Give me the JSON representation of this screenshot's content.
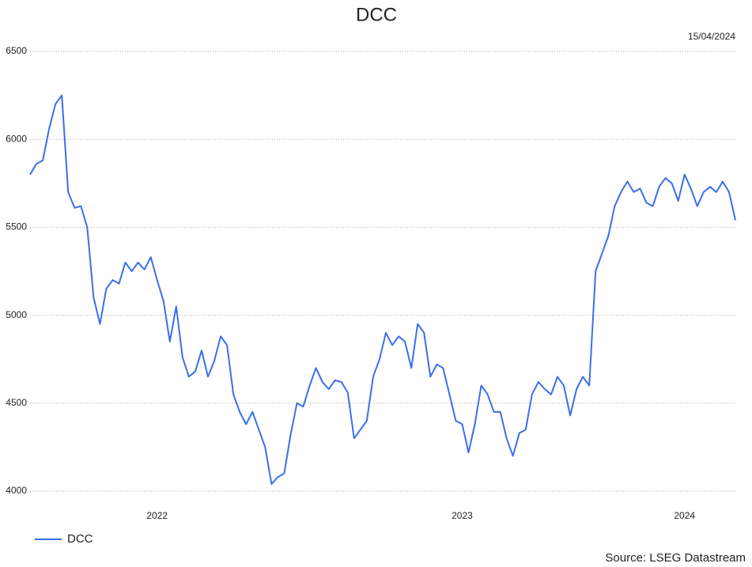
{
  "chart_data": {
    "type": "line",
    "title": "DCC",
    "date": "15/04/2024",
    "source": "Source: LSEG Datastream",
    "categories": [
      null,
      null,
      null,
      null,
      null,
      null,
      null,
      null,
      null,
      null,
      null,
      null,
      null,
      null,
      null,
      null,
      null,
      null,
      null,
      null,
      "2022",
      null,
      null,
      null,
      null,
      null,
      null,
      null,
      null,
      null,
      null,
      null,
      null,
      null,
      null,
      null,
      null,
      null,
      null,
      null,
      null,
      null,
      null,
      null,
      null,
      null,
      null,
      null,
      null,
      null,
      null,
      null,
      null,
      null,
      null,
      null,
      null,
      null,
      null,
      null,
      null,
      null,
      null,
      null,
      null,
      null,
      null,
      null,
      "2023",
      null,
      null,
      null,
      null,
      null,
      null,
      null,
      null,
      null,
      null,
      null,
      null,
      null,
      null,
      null,
      null,
      null,
      null,
      null,
      null,
      null,
      null,
      null,
      null,
      null,
      null,
      null,
      null,
      null,
      null,
      null,
      null,
      null,
      null,
      "2024",
      null,
      null,
      null,
      null,
      null,
      null,
      null,
      null
    ],
    "series": [
      {
        "name": "DCC",
        "color": "#3b6fe8",
        "values": [
          5800,
          5860,
          5880,
          6060,
          6200,
          6250,
          5700,
          5610,
          5620,
          5500,
          5100,
          4950,
          5150,
          5200,
          5180,
          5300,
          5250,
          5300,
          5260,
          5330,
          5200,
          5080,
          4850,
          5050,
          4760,
          4650,
          4680,
          4800,
          4650,
          4740,
          4880,
          4830,
          4550,
          4450,
          4380,
          4450,
          4350,
          4250,
          4040,
          4080,
          4100,
          4320,
          4500,
          4480,
          4600,
          4700,
          4620,
          4580,
          4630,
          4620,
          4560,
          4300,
          4350,
          4400,
          4650,
          4750,
          4900,
          4830,
          4880,
          4850,
          4700,
          4950,
          4900,
          4650,
          4720,
          4700,
          4550,
          4400,
          4380,
          4220,
          4380,
          4600,
          4550,
          4450,
          4450,
          4300,
          4200,
          4330,
          4350,
          4550,
          4620,
          4580,
          4550,
          4650,
          4600,
          4430,
          4580,
          4650,
          4600,
          5250,
          5350,
          5450,
          5620,
          5700,
          5760,
          5700,
          5720,
          5640,
          5620,
          5730,
          5780,
          5750,
          5650,
          5800,
          5720,
          5620,
          5700,
          5730,
          5700,
          5760,
          5700,
          5540
        ]
      }
    ],
    "ylim": [
      4000,
      6500
    ],
    "yticks": [
      4000,
      4500,
      5000,
      5500,
      6000,
      6500
    ],
    "grid": true,
    "legend": "bottom-left"
  }
}
